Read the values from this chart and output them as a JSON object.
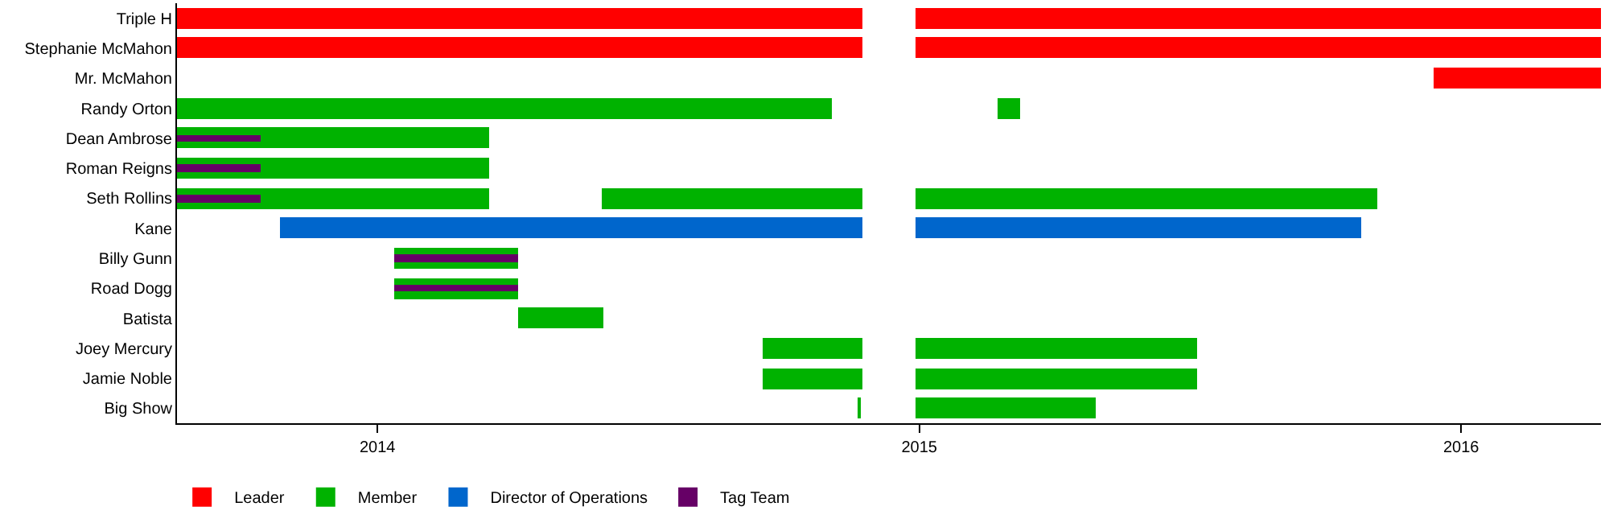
{
  "chart_data": {
    "type": "bar",
    "orientation": "horizontal",
    "categories": [
      "Triple H",
      "Stephanie McMahon",
      "Mr. McMahon",
      "Randy Orton",
      "Dean Ambrose",
      "Roman Reigns",
      "Seth Rollins",
      "Kane",
      "Billy Gunn",
      "Road Dogg",
      "Batista",
      "Joey Mercury",
      "Jamie Noble",
      "Big Show"
    ],
    "series": [
      {
        "name": "Leader",
        "color": "#ff0000",
        "base": [
          2013.63,
          2013.63,
          null,
          null,
          null,
          null,
          null,
          null,
          null,
          null,
          null,
          null,
          null,
          null
        ],
        "values": [
          1.264,
          1.264,
          null,
          null,
          null,
          null,
          null,
          null,
          null,
          null,
          null,
          null,
          null,
          null
        ]
      },
      {
        "color": "#ff0000",
        "base": [
          2014.992,
          2014.992,
          2015.949,
          null,
          null,
          null,
          null,
          null,
          null,
          null,
          null,
          null,
          null,
          null
        ],
        "values": [
          1.266,
          1.266,
          0.309,
          null,
          null,
          null,
          null,
          null,
          null,
          null,
          null,
          null,
          null,
          null
        ]
      },
      {
        "name": "Member",
        "color": "#00b200",
        "base": [
          null,
          null,
          null,
          2013.63,
          2013.63,
          2013.63,
          2013.63,
          null,
          2014.032,
          2014.032,
          2014.261,
          2014.712,
          2014.712,
          2014.888
        ],
        "values": [
          null,
          null,
          null,
          1.21,
          0.577,
          0.577,
          0.577,
          null,
          0.229,
          0.229,
          0.157,
          0.182,
          0.182,
          0.003
        ]
      },
      {
        "color": "#00b200",
        "base": [
          null,
          null,
          null,
          2015.143,
          null,
          null,
          2014.415,
          null,
          null,
          null,
          null,
          2014.992,
          2014.992,
          2014.992
        ],
        "values": [
          null,
          null,
          null,
          0.042,
          null,
          null,
          0.479,
          null,
          null,
          null,
          null,
          0.52,
          0.52,
          0.335
        ]
      },
      {
        "color": "#00b200",
        "base": [
          null,
          null,
          null,
          null,
          null,
          null,
          2014.992,
          null,
          null,
          null,
          null,
          null,
          null,
          null
        ],
        "values": [
          null,
          null,
          null,
          null,
          null,
          null,
          0.852,
          null,
          null,
          null,
          null,
          null,
          null,
          null
        ]
      },
      {
        "name": "Director of Operations",
        "color": "#0066cc",
        "base": [
          null,
          null,
          null,
          null,
          null,
          null,
          null,
          2013.821,
          null,
          null,
          null,
          null,
          null,
          null
        ],
        "values": [
          null,
          null,
          null,
          null,
          null,
          null,
          null,
          1.073,
          null,
          null,
          null,
          null,
          null,
          null
        ]
      },
      {
        "color": "#0066cc",
        "base": [
          null,
          null,
          null,
          null,
          null,
          null,
          null,
          2014.992,
          null,
          null,
          null,
          null,
          null,
          null
        ],
        "values": [
          null,
          null,
          null,
          null,
          null,
          null,
          null,
          0.823,
          null,
          null,
          null,
          null,
          null,
          null
        ]
      },
      {
        "name": "Tag Team",
        "color": "#660066",
        "base": [
          null,
          null,
          null,
          null,
          2013.63,
          2013.63,
          2013.63,
          null,
          2014.032,
          2014.032,
          null,
          null,
          null,
          null
        ],
        "values": [
          null,
          null,
          null,
          null,
          0.155,
          0.155,
          0.155,
          null,
          0.229,
          0.229,
          null,
          null,
          null,
          null
        ]
      }
    ],
    "xlim": [
      2013.63,
      2016.258
    ],
    "xticks": [
      2014,
      2015,
      2016
    ],
    "legend": "bottom"
  }
}
